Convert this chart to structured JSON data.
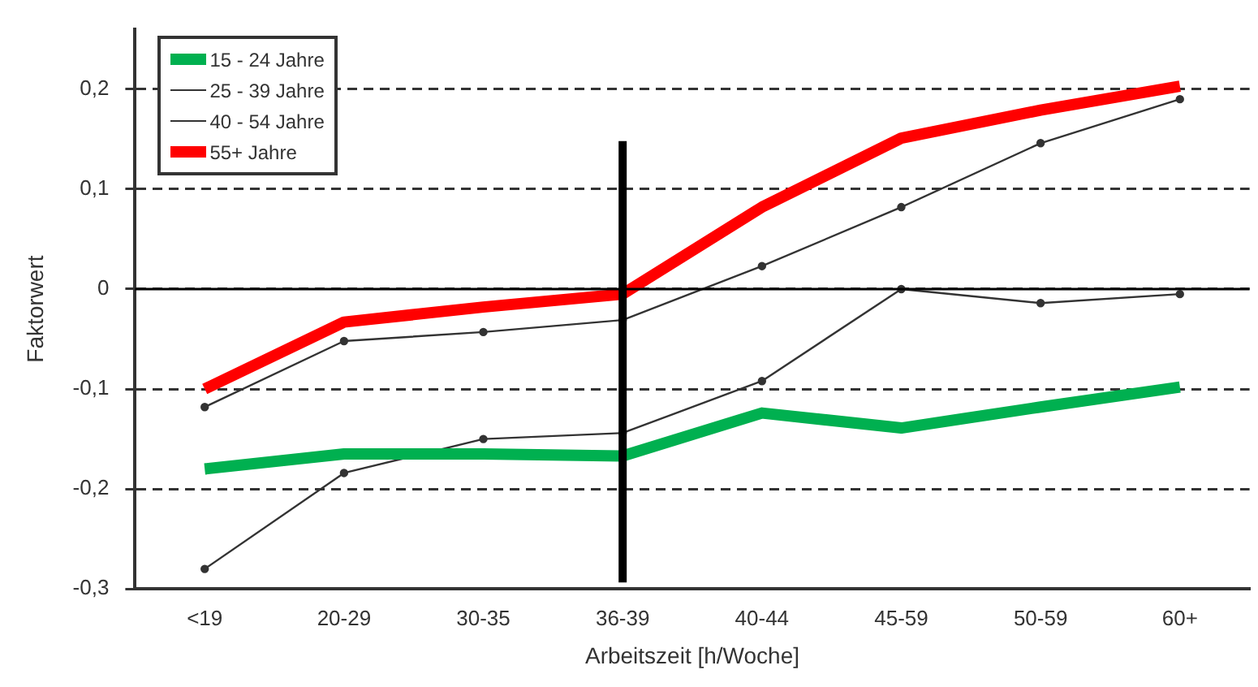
{
  "chart_data": {
    "type": "line",
    "xlabel": "Arbeitszeit [h/Woche]",
    "ylabel": "Faktorwert",
    "categories": [
      "<19",
      "20-29",
      "30-35",
      "36-39",
      "40-44",
      "45-59",
      "50-59",
      "60+"
    ],
    "series": [
      {
        "name": "15 - 24 Jahre",
        "color": "#00b050",
        "marker": "none",
        "values": [
          -0.18,
          -0.165,
          -0.165,
          -0.167,
          -0.124,
          -0.139,
          -0.118,
          -0.098
        ]
      },
      {
        "name": "25 - 39 Jahre",
        "color": "#333333",
        "marker": "circle",
        "values": [
          -0.28,
          -0.184,
          -0.15,
          -0.144,
          -0.092,
          0,
          -0.014,
          -0.005
        ]
      },
      {
        "name": "40 - 54 Jahre",
        "color": "#333333",
        "marker": "circle",
        "values": [
          -0.118,
          -0.052,
          -0.043,
          -0.031,
          0.023,
          0.082,
          0.146,
          0.19
        ]
      },
      {
        "name": "55+ Jahre",
        "color": "#ff0000",
        "marker": "none",
        "values": [
          -0.1,
          -0.033,
          -0.018,
          -0.005,
          0.082,
          0.151,
          0.179,
          0.203
        ]
      }
    ],
    "ylim": [
      -0.3,
      0.26
    ],
    "yticks": [
      {
        "value": -0.3,
        "label": "-0,3"
      },
      {
        "value": -0.2,
        "label": "-0,2"
      },
      {
        "value": -0.1,
        "label": "-0,1"
      },
      0,
      {
        "value": 0.1,
        "label": "0,1"
      },
      {
        "value": 0.2,
        "label": "0,2"
      }
    ],
    "grid": "y",
    "legend": "top left",
    "ref_lines": [
      {
        "axis": "y",
        "value": 0,
        "color": "#000000",
        "line_style": "solid"
      },
      {
        "axis": "x",
        "value": "36-39",
        "color": "#000000",
        "line_style": "solid"
      }
    ]
  }
}
